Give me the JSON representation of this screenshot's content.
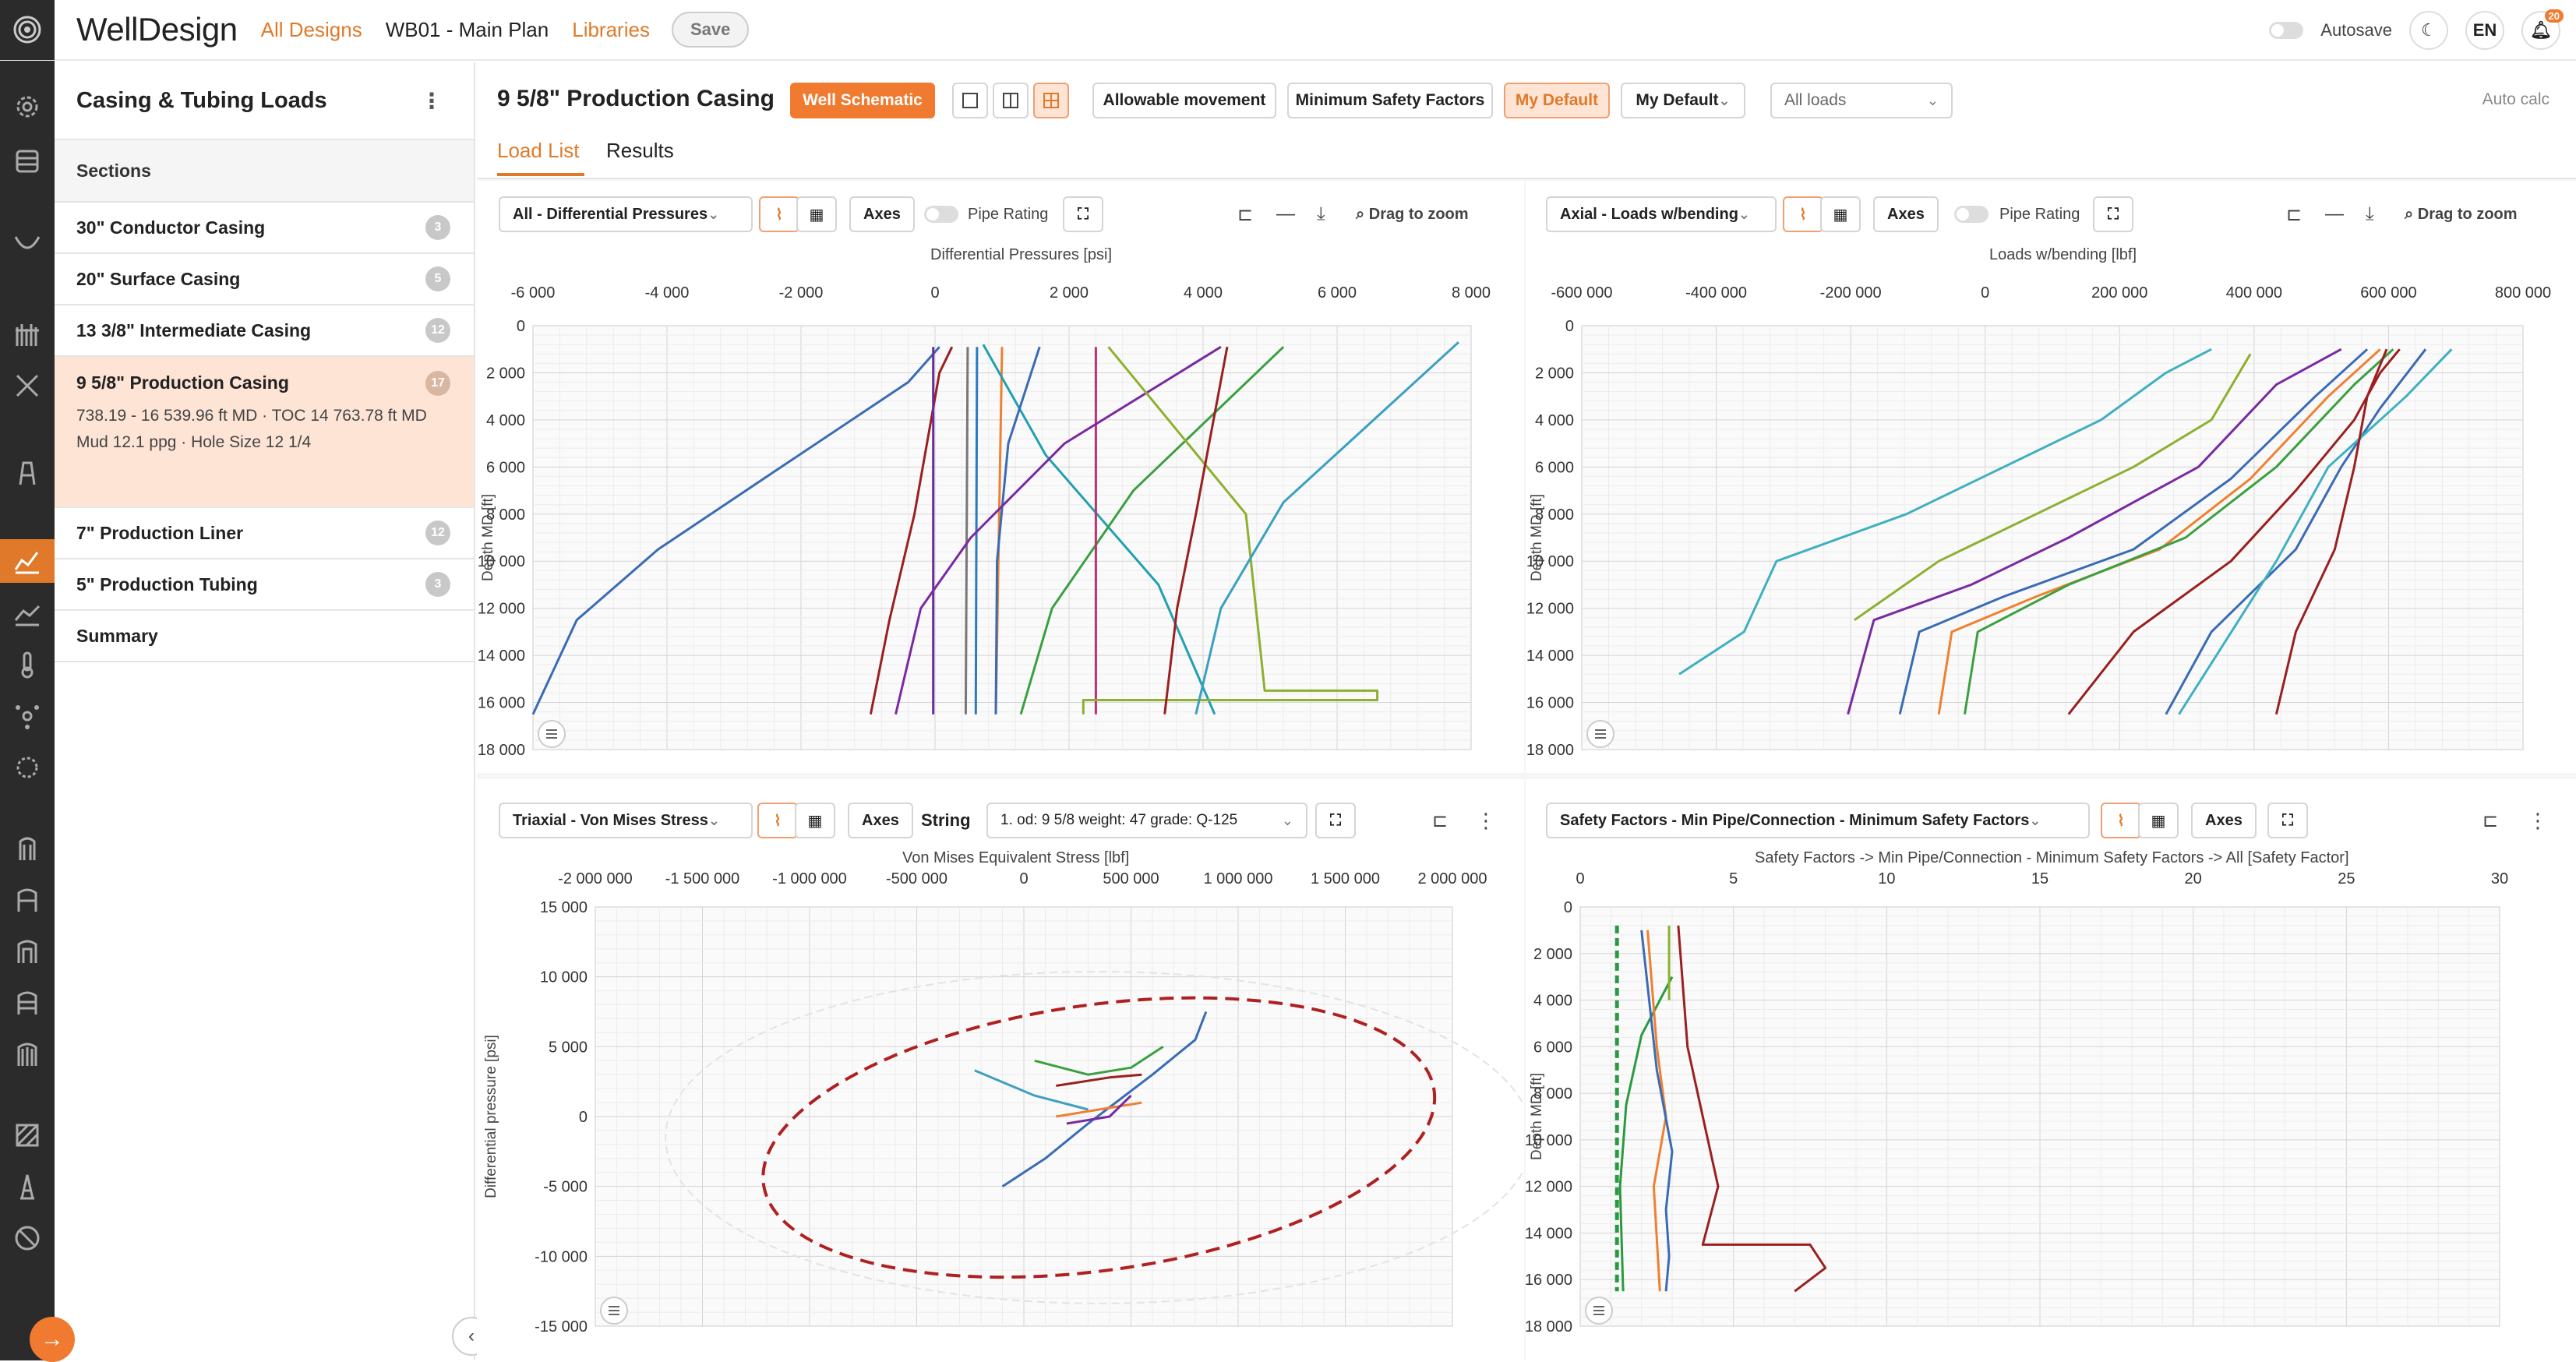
{
  "header": {
    "brand": "WellDesign",
    "nav": [
      "All Designs",
      "WB01 - Main Plan",
      "Libraries"
    ],
    "save": "Save",
    "autosave": "Autosave",
    "lang": "EN",
    "notif_count": "20"
  },
  "sidebar": {
    "title": "Casing & Tubing Loads",
    "sections_label": "Sections",
    "items": [
      {
        "label": "30\" Conductor Casing",
        "count": "3"
      },
      {
        "label": "20\" Surface Casing",
        "count": "5"
      },
      {
        "label": "13 3/8\" Intermediate Casing",
        "count": "12"
      },
      {
        "label": "9 5/8\" Production Casing",
        "count": "17",
        "line1": "738.19 - 16 539.96 ft MD · TOC 14 763.78 ft MD",
        "line2": "Mud 12.1 ppg · Hole Size 12 1/4"
      },
      {
        "label": "7\" Production Liner",
        "count": "12"
      },
      {
        "label": "5\" Production Tubing",
        "count": "3"
      },
      {
        "label": "Summary"
      }
    ]
  },
  "main": {
    "title": "9 5/8\" Production Casing",
    "well_schematic": "Well Schematic",
    "allowable": "Allowable movement",
    "min_sf": "Minimum Safety Factors",
    "my_default_btn": "My Default",
    "my_default_select": "My Default",
    "all_loads": "All loads",
    "auto_calc": "Auto calc",
    "tabs": [
      "Load List",
      "Results"
    ]
  },
  "panels": {
    "common": {
      "axes": "Axes",
      "pipe_rating": "Pipe Rating",
      "drag_zoom": "Drag to zoom",
      "string": "String"
    },
    "p1": {
      "select": "All - Differential Pressures"
    },
    "p2": {
      "select": "Axial - Loads w/bending"
    },
    "p3": {
      "select": "Triaxial - Von Mises Stress",
      "string_select": "1. od: 9 5/8 weight: 47 grade: Q-125"
    },
    "p4": {
      "select": "Safety Factors - Min Pipe/Connection - Minimum Safety Factors"
    }
  },
  "chart_data": [
    {
      "type": "line",
      "title": "Differential Pressures [psi]",
      "ylabel": "Depth MD [ft]",
      "xlim": [
        -7000,
        8000
      ],
      "ylim": [
        0,
        18000
      ],
      "xticks": [
        "-6 000",
        "-4 000",
        "-2 000",
        "0",
        "2 000",
        "4 000",
        "6 000",
        "8 000"
      ],
      "yticks": [
        "0",
        "2 000",
        "4 000",
        "6 000",
        "8 000",
        "10 000",
        "12 000",
        "14 000",
        "16 000",
        "18 000"
      ],
      "series": [
        {
          "color": "#3a6bb5",
          "points": [
            [
              -7000,
              16500
            ],
            [
              -6300,
              12500
            ],
            [
              -5000,
              9500
            ],
            [
              -3200,
              6300
            ],
            [
              -1000,
              2400
            ],
            [
              -500,
              900
            ]
          ]
        },
        {
          "color": "#9a2020",
          "points": [
            [
              -1600,
              16500
            ],
            [
              -1300,
              12500
            ],
            [
              -900,
              8000
            ],
            [
              -500,
              2000
            ],
            [
              -300,
              900
            ]
          ]
        },
        {
          "color": "#6a2aa0",
          "points": [
            [
              -600,
              16500
            ],
            [
              -600,
              900
            ]
          ]
        },
        {
          "color": "#777777",
          "points": [
            [
              -80,
              16500
            ],
            [
              -50,
              900
            ]
          ]
        },
        {
          "color": "#2a7ac0",
          "points": [
            [
              80,
              16500
            ],
            [
              100,
              900
            ]
          ]
        },
        {
          "color": "#f08030",
          "points": [
            [
              400,
              16500
            ],
            [
              500,
              900
            ]
          ]
        },
        {
          "color": "#20a0b0",
          "points": [
            [
              200,
              800
            ],
            [
              1200,
              5500
            ],
            [
              3000,
              11000
            ],
            [
              3900,
              16500
            ]
          ]
        },
        {
          "color": "#3a6bb5",
          "points": [
            [
              1100,
              900
            ],
            [
              600,
              5000
            ],
            [
              420,
              10000
            ],
            [
              400,
              16500
            ]
          ]
        },
        {
          "color": "#3aa040",
          "points": [
            [
              5000,
              900
            ],
            [
              2600,
              7000
            ],
            [
              1300,
              12000
            ],
            [
              800,
              16500
            ]
          ]
        },
        {
          "color": "#c03070",
          "points": [
            [
              2000,
              900
            ],
            [
              2000,
              16500
            ]
          ]
        },
        {
          "color": "#7a2aa0",
          "points": [
            [
              4000,
              900
            ],
            [
              1500,
              5000
            ],
            [
              0,
              9000
            ],
            [
              -800,
              12000
            ],
            [
              -1200,
              16500
            ]
          ]
        },
        {
          "color": "#8db030",
          "points": [
            [
              2200,
              900
            ],
            [
              4400,
              8000
            ],
            [
              4700,
              15500
            ],
            [
              6500,
              15500
            ],
            [
              6500,
              15900
            ],
            [
              1800,
              15900
            ],
            [
              1800,
              16500
            ]
          ]
        },
        {
          "color": "#9a2020",
          "points": [
            [
              4100,
              900
            ],
            [
              3600,
              8000
            ],
            [
              3300,
              12000
            ],
            [
              3100,
              16500
            ]
          ]
        },
        {
          "color": "#3aa0c0",
          "points": [
            [
              7800,
              700
            ],
            [
              5000,
              7500
            ],
            [
              4000,
              12000
            ],
            [
              3600,
              16500
            ]
          ]
        }
      ]
    },
    {
      "type": "line",
      "title": "Loads w/bending [lbf]",
      "ylabel": "Depth MD [ft]",
      "xlim": [
        -650000,
        800000
      ],
      "ylim": [
        0,
        18000
      ],
      "xticks": [
        "-600 000",
        "-400 000",
        "-200 000",
        "0",
        "200 000",
        "400 000",
        "600 000",
        "800 000"
      ],
      "yticks": [
        "0",
        "2 000",
        "4 000",
        "6 000",
        "8 000",
        "10 000",
        "12 000",
        "14 000",
        "16 000",
        "18 000"
      ],
      "series": [
        {
          "color": "#40b0c0",
          "points": [
            [
              -500000,
              14800
            ],
            [
              -400000,
              13000
            ],
            [
              -350000,
              10000
            ],
            [
              -150000,
              8000
            ],
            [
              150000,
              4000
            ],
            [
              250000,
              2000
            ],
            [
              320000,
              1000
            ]
          ]
        },
        {
          "color": "#7a2aa0",
          "points": [
            [
              -240000,
              16500
            ],
            [
              -200000,
              12500
            ],
            [
              -50000,
              11000
            ],
            [
              100000,
              9000
            ],
            [
              300000,
              6000
            ],
            [
              420000,
              2500
            ],
            [
              520000,
              1000
            ]
          ]
        },
        {
          "color": "#3a6bb5",
          "points": [
            [
              -160000,
              16500
            ],
            [
              -130000,
              13000
            ],
            [
              0,
              11500
            ],
            [
              200000,
              9500
            ],
            [
              350000,
              6500
            ],
            [
              480000,
              3000
            ],
            [
              560000,
              1000
            ]
          ]
        },
        {
          "color": "#f08030",
          "points": [
            [
              -100000,
              16500
            ],
            [
              -80000,
              13000
            ],
            [
              50000,
              11500
            ],
            [
              240000,
              9500
            ],
            [
              380000,
              6500
            ],
            [
              500000,
              3000
            ],
            [
              580000,
              1000
            ]
          ]
        },
        {
          "color": "#3aa040",
          "points": [
            [
              -60000,
              16500
            ],
            [
              -40000,
              13000
            ],
            [
              100000,
              11000
            ],
            [
              280000,
              9000
            ],
            [
              420000,
              6000
            ],
            [
              540000,
              2500
            ],
            [
              600000,
              1000
            ]
          ]
        },
        {
          "color": "#8db030",
          "points": [
            [
              -230000,
              12500
            ],
            [
              -100000,
              10000
            ],
            [
              50000,
              8000
            ],
            [
              200000,
              6000
            ],
            [
              320000,
              4000
            ],
            [
              380000,
              1200
            ]
          ]
        },
        {
          "color": "#9a2020",
          "points": [
            [
              100000,
              16500
            ],
            [
              200000,
              13000
            ],
            [
              350000,
              10000
            ],
            [
              450000,
              7000
            ],
            [
              540000,
              4000
            ],
            [
              580000,
              2000
            ],
            [
              610000,
              1000
            ]
          ]
        },
        {
          "color": "#3a6bb5",
          "points": [
            [
              250000,
              16500
            ],
            [
              320000,
              13000
            ],
            [
              450000,
              9500
            ],
            [
              520000,
              6000
            ],
            [
              580000,
              3500
            ],
            [
              650000,
              1000
            ]
          ]
        },
        {
          "color": "#40b0c0",
          "points": [
            [
              270000,
              16500
            ],
            [
              420000,
              10000
            ],
            [
              500000,
              6000
            ],
            [
              620000,
              3000
            ],
            [
              690000,
              1000
            ]
          ]
        },
        {
          "color": "#9a2020",
          "points": [
            [
              420000,
              16500
            ],
            [
              450000,
              13000
            ],
            [
              510000,
              9500
            ],
            [
              540000,
              6000
            ],
            [
              560000,
              3000
            ],
            [
              590000,
              1000
            ]
          ]
        }
      ]
    },
    {
      "type": "scatter",
      "title": "Von Mises Equivalent Stress [lbf]",
      "ylabel": "Differential pressure [psi]",
      "xlim": [
        -2000000,
        2000000
      ],
      "ylim": [
        -15000,
        15000
      ],
      "xticks": [
        "-2 000 000",
        "-1 500 000",
        "-1 000 000",
        "-500 000",
        "0",
        "500 000",
        "1 000 000",
        "1 500 000",
        "2 000 000"
      ],
      "yticks": [
        "15 000",
        "10 000",
        "5 000",
        "0",
        "-5 000",
        "-10 000",
        "-15 000"
      ],
      "ellipse": {
        "cx": 350000,
        "cy": -1500,
        "rx": 1580000,
        "ry": 9500,
        "color": "#b02020"
      },
      "series": [
        {
          "color": "#3a6bb5",
          "points": [
            [
              -100000,
              -5000
            ],
            [
              100000,
              -3000
            ],
            [
              300000,
              -500
            ],
            [
              600000,
              3000
            ],
            [
              800000,
              5500
            ],
            [
              850000,
              7500
            ]
          ]
        },
        {
          "color": "#40a0c0",
          "points": [
            [
              -230000,
              3300
            ],
            [
              50000,
              1500
            ],
            [
              300000,
              500
            ]
          ]
        },
        {
          "color": "#3aa040",
          "points": [
            [
              50000,
              4000
            ],
            [
              300000,
              3000
            ],
            [
              500000,
              3500
            ],
            [
              650000,
              5000
            ]
          ]
        },
        {
          "color": "#f08030",
          "points": [
            [
              150000,
              0
            ],
            [
              350000,
              500
            ],
            [
              550000,
              1000
            ]
          ]
        },
        {
          "color": "#9a2020",
          "points": [
            [
              150000,
              2200
            ],
            [
              400000,
              2800
            ],
            [
              550000,
              3000
            ]
          ]
        },
        {
          "color": "#7a2aa0",
          "points": [
            [
              200000,
              -500
            ],
            [
              400000,
              0
            ],
            [
              500000,
              1500
            ]
          ]
        }
      ]
    },
    {
      "type": "line",
      "title": "Safety Factors -> Min Pipe/Connection - Minimum Safety Factors -> All [Safety Factor]",
      "ylabel": "Depth MD [ft]",
      "xlim": [
        0,
        30
      ],
      "ylim": [
        0,
        18000
      ],
      "xticks": [
        "0",
        "5",
        "10",
        "15",
        "20",
        "25",
        "30"
      ],
      "yticks": [
        "0",
        "2 000",
        "4 000",
        "6 000",
        "8 000",
        "10 000",
        "12 000",
        "14 000",
        "16 000",
        "18 000"
      ],
      "series": [
        {
          "color": "#2a9a40",
          "dashed": true,
          "points": [
            [
              1.2,
              800
            ],
            [
              1.2,
              16500
            ]
          ]
        },
        {
          "color": "#2a9a40",
          "points": [
            [
              3.0,
              3000
            ],
            [
              2.0,
              5500
            ],
            [
              1.5,
              8500
            ],
            [
              1.3,
              12000
            ],
            [
              1.4,
              16500
            ]
          ]
        },
        {
          "color": "#f08030",
          "points": [
            [
              2.2,
              1000
            ],
            [
              2.5,
              6000
            ],
            [
              2.8,
              9000
            ],
            [
              2.4,
              12000
            ],
            [
              2.6,
              16500
            ]
          ]
        },
        {
          "color": "#3a6bb5",
          "points": [
            [
              2.0,
              1000
            ],
            [
              2.5,
              7000
            ],
            [
              3.0,
              10500
            ],
            [
              2.8,
              13000
            ],
            [
              2.9,
              15000
            ],
            [
              2.8,
              16500
            ]
          ]
        },
        {
          "color": "#9a2020",
          "points": [
            [
              3.2,
              800
            ],
            [
              3.5,
              6000
            ],
            [
              4.0,
              9000
            ],
            [
              4.5,
              12000
            ],
            [
              4.0,
              14500
            ],
            [
              7.5,
              14500
            ],
            [
              8.0,
              15500
            ],
            [
              7.0,
              16500
            ]
          ]
        },
        {
          "color": "#8db030",
          "points": [
            [
              2.9,
              800
            ],
            [
              2.9,
              4000
            ]
          ]
        }
      ]
    }
  ]
}
